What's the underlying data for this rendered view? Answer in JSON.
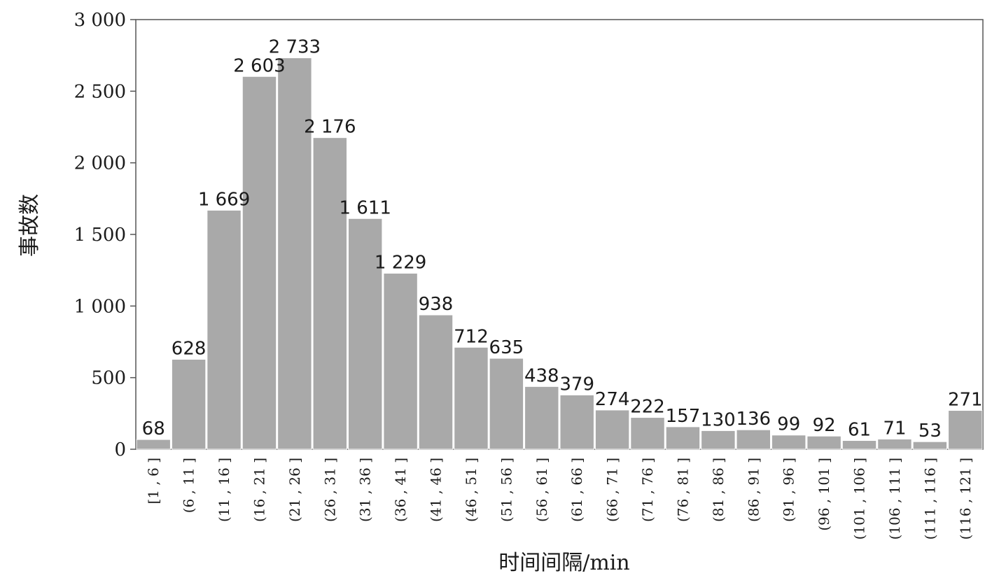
{
  "chart_data": {
    "type": "bar",
    "title": "",
    "xlabel": "时间间隔/min",
    "ylabel": "事故数",
    "ylim": [
      0,
      3000
    ],
    "yticks": [
      0,
      500,
      1000,
      1500,
      2000,
      2500,
      3000
    ],
    "ytick_labels": [
      "0",
      "500",
      "1 000",
      "1 500",
      "2 000",
      "2 500",
      "3 000"
    ],
    "grid": false,
    "legend": "none",
    "bar_color": "#a9a9a9",
    "categories": [
      "[1 , 6 ]",
      "(6 , 11 ]",
      "(11 , 16 ]",
      "(16 , 21 ]",
      "(21 , 26 ]",
      "(26 , 31 ]",
      "(31 , 36 ]",
      "(36 , 41 ]",
      "(41 , 46 ]",
      "(46 , 51 ]",
      "(51 , 56 ]",
      "(56 , 61 ]",
      "(61 , 66 ]",
      "(66 , 71 ]",
      "(71 , 76 ]",
      "(76 , 81 ]",
      "(81 , 86 ]",
      "(86 , 91 ]",
      "(91 , 96 ]",
      "(96 , 101 ]",
      "(101 , 106 ]",
      "(106 , 111 ]",
      "(111 , 116 ]",
      "(116 , 121 ]"
    ],
    "values": [
      68,
      628,
      1669,
      2603,
      2733,
      2176,
      1611,
      1229,
      938,
      712,
      635,
      438,
      379,
      274,
      222,
      157,
      130,
      136,
      99,
      92,
      61,
      71,
      53,
      271
    ],
    "value_labels": [
      "68",
      "628",
      "1 669",
      "2 603",
      "2 733",
      "2 176",
      "1 611",
      "1 229",
      "938",
      "712",
      "635",
      "438",
      "379",
      "274",
      "222",
      "157",
      "130",
      "136",
      "99",
      "92",
      "61",
      "71",
      "53",
      "271"
    ]
  }
}
